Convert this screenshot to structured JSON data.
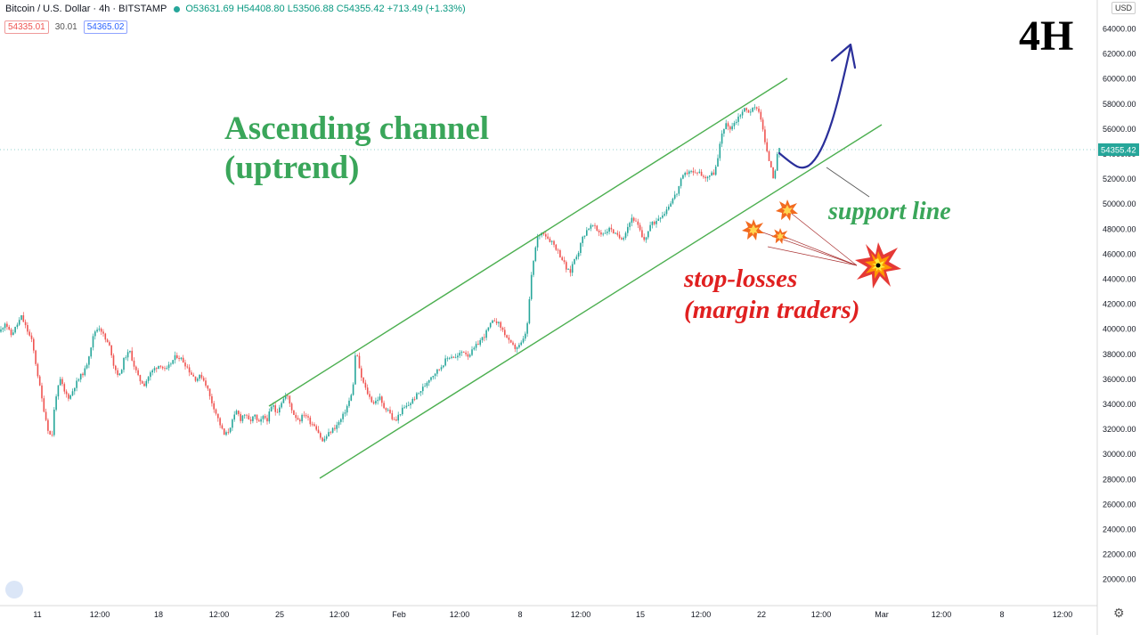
{
  "header": {
    "symbol": "Bitcoin / U.S. Dollar · 4h · BITSTAMP",
    "ohlc": "O53631.69 H54408.80 L53506.88 C54355.42 +713.49 (+1.33%)",
    "bid": "54335.01",
    "spread": "30.01",
    "ask": "54365.02",
    "currency": "USD"
  },
  "annotations": {
    "timeframe": "4H",
    "title_line1": "Ascending channel",
    "title_line2": "(uptrend)",
    "support_label": "support line",
    "stops_line1": "stop-losses",
    "stops_line2": "(margin traders)"
  },
  "colors": {
    "up": "#26a69a",
    "down": "#ef5350",
    "channel": "#4caf50",
    "annotation_green": "#3aa65a",
    "annotation_red": "#e02020",
    "projection_arrow": "#2a2f9a",
    "price_label": "#26a69a"
  },
  "chart_data": {
    "type": "candlestick",
    "symbol": "BTCUSD",
    "timeframe": "4h",
    "ylim": [
      19000,
      66000
    ],
    "y_ticks": [
      20000,
      22000,
      24000,
      26000,
      28000,
      30000,
      32000,
      34000,
      36000,
      38000,
      40000,
      42000,
      44000,
      46000,
      48000,
      50000,
      52000,
      54000,
      56000,
      58000,
      60000,
      62000,
      64000
    ],
    "x_ticks": [
      "11",
      "12:00",
      "18",
      "12:00",
      "25",
      "12:00",
      "Feb",
      "12:00",
      "8",
      "12:00",
      "15",
      "12:00",
      "22",
      "12:00",
      "Mar",
      "12:00",
      "8",
      "12:00"
    ],
    "last_price": 54355.42,
    "close_path": [
      [
        0,
        39800
      ],
      [
        6,
        40600
      ],
      [
        12,
        39500
      ],
      [
        18,
        40200
      ],
      [
        24,
        41000
      ],
      [
        30,
        40000
      ],
      [
        36,
        39000
      ],
      [
        42,
        36500
      ],
      [
        48,
        34000
      ],
      [
        54,
        32000
      ],
      [
        58,
        31200
      ],
      [
        62,
        34500
      ],
      [
        68,
        36000
      ],
      [
        72,
        35000
      ],
      [
        78,
        34500
      ],
      [
        84,
        35500
      ],
      [
        90,
        36200
      ],
      [
        96,
        36800
      ],
      [
        100,
        38000
      ],
      [
        106,
        39800
      ],
      [
        112,
        40200
      ],
      [
        118,
        39200
      ],
      [
        124,
        38500
      ],
      [
        128,
        37000
      ],
      [
        134,
        36200
      ],
      [
        140,
        37800
      ],
      [
        146,
        38200
      ],
      [
        150,
        37200
      ],
      [
        156,
        36000
      ],
      [
        162,
        35600
      ],
      [
        168,
        36400
      ],
      [
        174,
        36900
      ],
      [
        180,
        37200
      ],
      [
        186,
        36600
      ],
      [
        192,
        37300
      ],
      [
        198,
        37900
      ],
      [
        204,
        37600
      ],
      [
        210,
        37000
      ],
      [
        214,
        36500
      ],
      [
        220,
        36000
      ],
      [
        226,
        36300
      ],
      [
        232,
        35500
      ],
      [
        236,
        34500
      ],
      [
        240,
        33800
      ],
      [
        244,
        33000
      ],
      [
        248,
        32200
      ],
      [
        252,
        31500
      ],
      [
        256,
        31800
      ],
      [
        260,
        32500
      ],
      [
        266,
        33500
      ],
      [
        270,
        32800
      ],
      [
        274,
        33300
      ],
      [
        280,
        32600
      ],
      [
        286,
        33100
      ],
      [
        290,
        32400
      ],
      [
        296,
        33000
      ],
      [
        300,
        32800
      ],
      [
        306,
        34000
      ],
      [
        310,
        33300
      ],
      [
        316,
        34200
      ],
      [
        322,
        34800
      ],
      [
        326,
        33900
      ],
      [
        330,
        33200
      ],
      [
        336,
        32700
      ],
      [
        342,
        33300
      ],
      [
        348,
        32600
      ],
      [
        354,
        32300
      ],
      [
        358,
        31700
      ],
      [
        362,
        31000
      ],
      [
        366,
        31400
      ],
      [
        372,
        31900
      ],
      [
        378,
        32300
      ],
      [
        384,
        32900
      ],
      [
        390,
        33900
      ],
      [
        396,
        35000
      ],
      [
        398,
        37300
      ],
      [
        400,
        38500
      ],
      [
        404,
        36500
      ],
      [
        410,
        35300
      ],
      [
        416,
        34400
      ],
      [
        420,
        34100
      ],
      [
        426,
        34600
      ],
      [
        430,
        33800
      ],
      [
        436,
        33600
      ],
      [
        440,
        32900
      ],
      [
        444,
        32600
      ],
      [
        448,
        33200
      ],
      [
        452,
        33600
      ],
      [
        458,
        33900
      ],
      [
        464,
        34400
      ],
      [
        470,
        34900
      ],
      [
        476,
        35400
      ],
      [
        482,
        36100
      ],
      [
        488,
        36500
      ],
      [
        494,
        36900
      ],
      [
        500,
        37500
      ],
      [
        506,
        37900
      ],
      [
        512,
        37700
      ],
      [
        516,
        38000
      ],
      [
        520,
        38300
      ],
      [
        526,
        37900
      ],
      [
        532,
        38400
      ],
      [
        538,
        39000
      ],
      [
        544,
        39500
      ],
      [
        550,
        40300
      ],
      [
        556,
        40800
      ],
      [
        562,
        40200
      ],
      [
        568,
        39500
      ],
      [
        572,
        38900
      ],
      [
        578,
        38500
      ],
      [
        584,
        38700
      ],
      [
        588,
        39200
      ],
      [
        592,
        40300
      ],
      [
        596,
        43800
      ],
      [
        600,
        46000
      ],
      [
        604,
        47500
      ],
      [
        610,
        47800
      ],
      [
        616,
        47200
      ],
      [
        620,
        47000
      ],
      [
        626,
        46300
      ],
      [
        632,
        45500
      ],
      [
        636,
        44800
      ],
      [
        640,
        44500
      ],
      [
        644,
        45500
      ],
      [
        650,
        46300
      ],
      [
        654,
        47300
      ],
      [
        660,
        48100
      ],
      [
        666,
        48300
      ],
      [
        670,
        47900
      ],
      [
        676,
        47600
      ],
      [
        680,
        47800
      ],
      [
        686,
        48100
      ],
      [
        690,
        47600
      ],
      [
        696,
        47300
      ],
      [
        700,
        47400
      ],
      [
        704,
        48100
      ],
      [
        710,
        49000
      ],
      [
        714,
        48500
      ],
      [
        718,
        48000
      ],
      [
        722,
        47000
      ],
      [
        726,
        47500
      ],
      [
        730,
        48300
      ],
      [
        736,
        48600
      ],
      [
        740,
        49000
      ],
      [
        746,
        49300
      ],
      [
        750,
        49800
      ],
      [
        754,
        50300
      ],
      [
        760,
        50900
      ],
      [
        764,
        51800
      ],
      [
        768,
        52300
      ],
      [
        774,
        52700
      ],
      [
        780,
        52400
      ],
      [
        784,
        52700
      ],
      [
        790,
        52100
      ],
      [
        796,
        52300
      ],
      [
        802,
        52500
      ],
      [
        806,
        53600
      ],
      [
        810,
        55500
      ],
      [
        814,
        56400
      ],
      [
        820,
        56100
      ],
      [
        826,
        56600
      ],
      [
        830,
        57100
      ],
      [
        836,
        57600
      ],
      [
        840,
        57400
      ],
      [
        846,
        57600
      ],
      [
        850,
        57800
      ],
      [
        854,
        57000
      ],
      [
        858,
        55300
      ],
      [
        862,
        53800
      ],
      [
        866,
        53000
      ],
      [
        868,
        52200
      ],
      [
        870,
        52600
      ],
      [
        872,
        53600
      ],
      [
        874,
        54300
      ],
      [
        876,
        54355
      ]
    ]
  }
}
